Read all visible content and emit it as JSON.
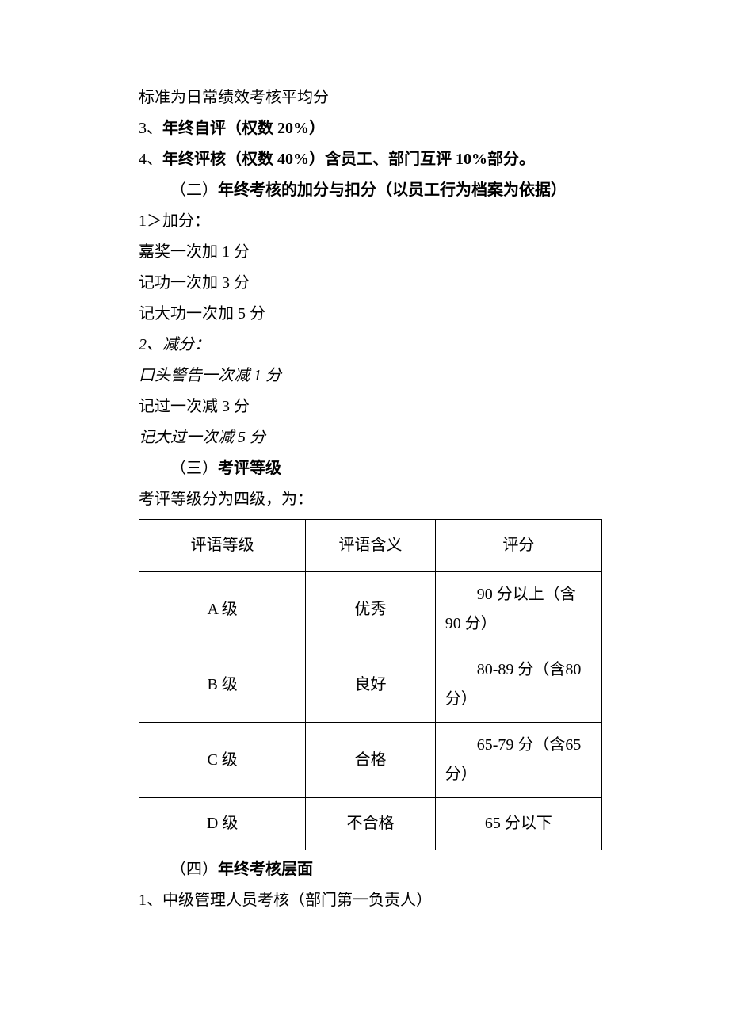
{
  "paragraphs": {
    "p1": "标准为日常绩效考核平均分",
    "p2_prefix": "3、",
    "p2_bold": "年终自评（权数 20%）",
    "p3_prefix": "4、",
    "p3_bold": "年终评核（权数 40%）含员工、部门互评 10%部分。",
    "p4_prefix": "（二）",
    "p4_bold": "年终考核的加分与扣分（以员工行为档案为依据）",
    "p5": "1＞加分：",
    "p6": "嘉奖一次加 1 分",
    "p7": "记功一次加 3 分",
    "p8": "记大功一次加 5 分",
    "p9": "2、减分：",
    "p10": "口头警告一次减 1 分",
    "p11": "记过一次减 3 分",
    "p12": "记大过一次减 5 分",
    "p13_prefix": "（三）",
    "p13_bold": "考评等级",
    "p14": "考评等级分为四级，为：",
    "p15_prefix": "（四）",
    "p15_bold": "年终考核层面",
    "p16": "1、中级管理人员考核（部门第一负责人）"
  },
  "table": {
    "background_color": "#ffffff",
    "border_color": "#000000",
    "font_size": 20,
    "columns": [
      "评语等级",
      "评语含义",
      "评分"
    ],
    "rows": [
      {
        "grade": "A 级",
        "meaning": "优秀",
        "score": "90 分以上（含 90 分）"
      },
      {
        "grade": "B 级",
        "meaning": "良好",
        "score": "80-89 分（含80 分）"
      },
      {
        "grade": "C 级",
        "meaning": "合格",
        "score": "65-79 分（含65 分）"
      },
      {
        "grade": "D 级",
        "meaning": "不合格",
        "score": "65 分以下"
      }
    ]
  }
}
